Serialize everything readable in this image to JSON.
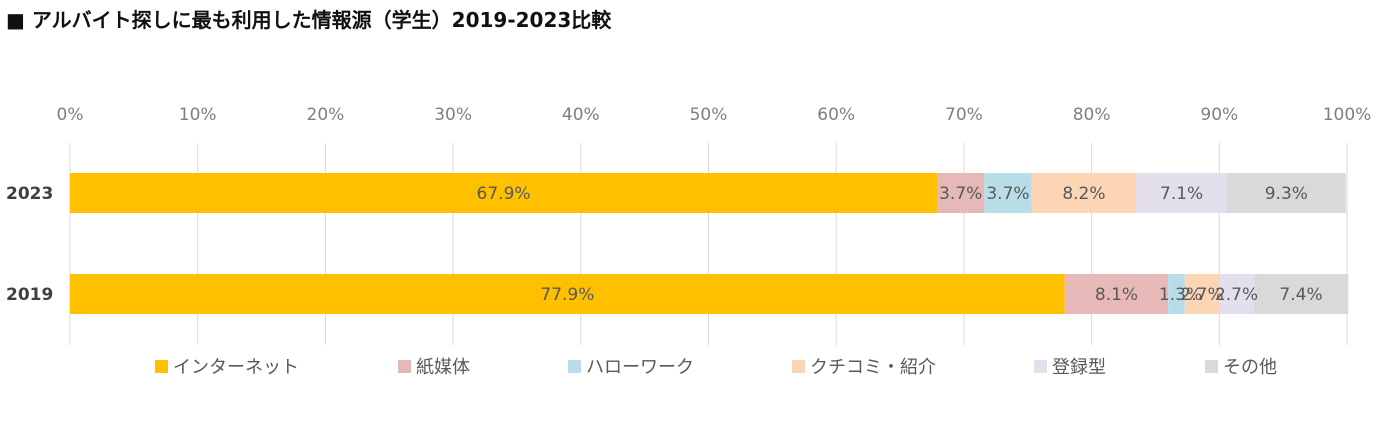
{
  "title": "■ アルバイト探しに最も利用した情報源（学生）2019-2023比較",
  "chart_data": {
    "type": "bar",
    "orientation": "horizontal",
    "stacked": true,
    "percent": true,
    "categories": [
      "2023",
      "2019"
    ],
    "series": [
      {
        "name": "インターネット",
        "color": "#FFC000",
        "values": [
          67.9,
          77.9
        ],
        "labels": [
          "67.9%",
          "77.9%"
        ]
      },
      {
        "name": "紙媒体",
        "color": "#E6B9B8",
        "values": [
          3.7,
          8.1
        ],
        "labels": [
          "3.7%",
          "8.1%"
        ]
      },
      {
        "name": "ハローワーク",
        "color": "#B7DEE8",
        "values": [
          3.7,
          1.3
        ],
        "labels": [
          "3.7%",
          "1.3%"
        ]
      },
      {
        "name": "クチコミ・紹介",
        "color": "#FCD5B5",
        "values": [
          8.2,
          2.7
        ],
        "labels": [
          "8.2%",
          "2.7%"
        ]
      },
      {
        "name": "登録型",
        "color": "#E4DFEC",
        "values": [
          7.1,
          2.7
        ],
        "labels": [
          "7.1%",
          "2.7%"
        ]
      },
      {
        "name": "その他",
        "color": "#D9D9D9",
        "values": [
          9.3,
          7.4
        ],
        "labels": [
          "9.3%",
          "7.4%"
        ]
      }
    ],
    "xlim": [
      0,
      100
    ],
    "xticks": [
      "0%",
      "10%",
      "20%",
      "30%",
      "40%",
      "50%",
      "60%",
      "70%",
      "80%",
      "90%",
      "100%"
    ],
    "grid": true,
    "axis_position": "top",
    "legend": "bottom",
    "xlabel": "",
    "ylabel": ""
  }
}
